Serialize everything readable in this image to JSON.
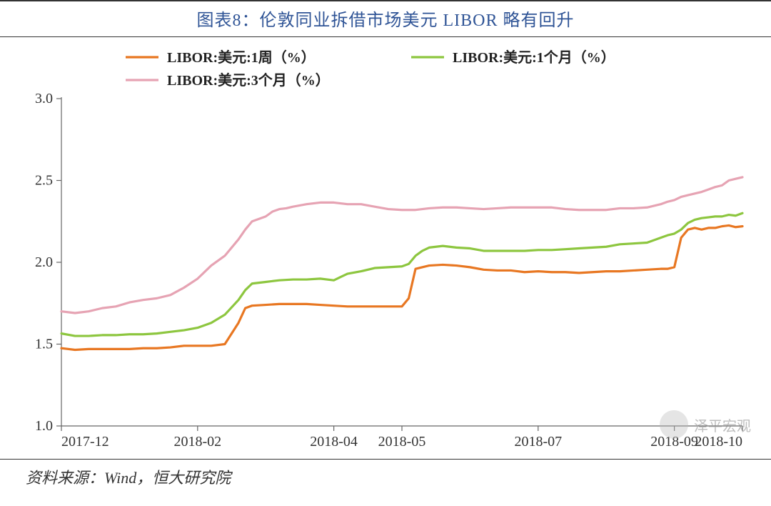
{
  "title": "图表8：伦敦同业拆借市场美元 LIBOR 略有回升",
  "footer": "资料来源：Wind，恒大研究院",
  "watermark": "泽平宏观",
  "chart": {
    "type": "line",
    "background_color": "#ffffff",
    "title_color": "#2f5496",
    "title_fontsize": 24,
    "axis_fontsize": 20,
    "legend_fontsize": 20,
    "line_width": 3.2,
    "xlim": [
      0,
      100
    ],
    "ylim": [
      1.0,
      3.0
    ],
    "ytick_step": 0.5,
    "yticks": [
      1.0,
      1.5,
      2.0,
      2.5,
      3.0
    ],
    "ytick_labels": [
      "1.0",
      "1.5",
      "2.0",
      "2.5",
      "3.0"
    ],
    "x_categories": [
      "2017-12",
      "2018-02",
      "2018-04",
      "2018-05",
      "2018-07",
      "2018-09",
      "2018-10"
    ],
    "x_category_pos": [
      0,
      20,
      40,
      50,
      70,
      90,
      100
    ],
    "tick_color": "#666666",
    "axis_color": "#666666",
    "legend": {
      "position": "top-inside",
      "legend_box_border": "none",
      "items": [
        {
          "label": "LIBOR:美元:1周（%）",
          "color": "#e87722"
        },
        {
          "label": "LIBOR:美元:1个月（%）",
          "color": "#8dc63f"
        },
        {
          "label": "LIBOR:美元:3个月（%）",
          "color": "#e6a3b3"
        }
      ]
    },
    "series": [
      {
        "name": "LIBOR:美元:1周（%）",
        "color": "#e87722",
        "dash": "none",
        "data": [
          [
            0,
            1.475
          ],
          [
            2,
            1.465
          ],
          [
            4,
            1.47
          ],
          [
            6,
            1.47
          ],
          [
            8,
            1.47
          ],
          [
            10,
            1.47
          ],
          [
            12,
            1.475
          ],
          [
            14,
            1.475
          ],
          [
            16,
            1.48
          ],
          [
            18,
            1.49
          ],
          [
            20,
            1.49
          ],
          [
            22,
            1.49
          ],
          [
            24,
            1.5
          ],
          [
            26,
            1.63
          ],
          [
            27,
            1.72
          ],
          [
            28,
            1.735
          ],
          [
            30,
            1.74
          ],
          [
            32,
            1.745
          ],
          [
            34,
            1.745
          ],
          [
            36,
            1.745
          ],
          [
            38,
            1.74
          ],
          [
            40,
            1.735
          ],
          [
            42,
            1.73
          ],
          [
            44,
            1.73
          ],
          [
            46,
            1.73
          ],
          [
            48,
            1.73
          ],
          [
            50,
            1.73
          ],
          [
            51,
            1.78
          ],
          [
            52,
            1.96
          ],
          [
            54,
            1.98
          ],
          [
            56,
            1.985
          ],
          [
            58,
            1.98
          ],
          [
            60,
            1.97
          ],
          [
            62,
            1.955
          ],
          [
            64,
            1.95
          ],
          [
            66,
            1.95
          ],
          [
            68,
            1.94
          ],
          [
            70,
            1.945
          ],
          [
            72,
            1.94
          ],
          [
            74,
            1.94
          ],
          [
            76,
            1.935
          ],
          [
            78,
            1.94
          ],
          [
            80,
            1.945
          ],
          [
            82,
            1.945
          ],
          [
            84,
            1.95
          ],
          [
            86,
            1.955
          ],
          [
            88,
            1.96
          ],
          [
            89,
            1.96
          ],
          [
            90,
            1.97
          ],
          [
            91,
            2.15
          ],
          [
            92,
            2.2
          ],
          [
            93,
            2.21
          ],
          [
            94,
            2.2
          ],
          [
            95,
            2.21
          ],
          [
            96,
            2.21
          ],
          [
            97,
            2.22
          ],
          [
            98,
            2.225
          ],
          [
            99,
            2.215
          ],
          [
            100,
            2.22
          ]
        ]
      },
      {
        "name": "LIBOR:美元:1个月（%）",
        "color": "#8dc63f",
        "dash": "none",
        "data": [
          [
            0,
            1.565
          ],
          [
            2,
            1.55
          ],
          [
            4,
            1.55
          ],
          [
            6,
            1.555
          ],
          [
            8,
            1.555
          ],
          [
            10,
            1.56
          ],
          [
            12,
            1.56
          ],
          [
            14,
            1.565
          ],
          [
            16,
            1.575
          ],
          [
            18,
            1.585
          ],
          [
            20,
            1.6
          ],
          [
            22,
            1.63
          ],
          [
            24,
            1.68
          ],
          [
            26,
            1.77
          ],
          [
            27,
            1.83
          ],
          [
            28,
            1.87
          ],
          [
            30,
            1.88
          ],
          [
            32,
            1.89
          ],
          [
            34,
            1.895
          ],
          [
            36,
            1.895
          ],
          [
            38,
            1.9
          ],
          [
            40,
            1.89
          ],
          [
            41,
            1.91
          ],
          [
            42,
            1.93
          ],
          [
            44,
            1.945
          ],
          [
            46,
            1.965
          ],
          [
            48,
            1.97
          ],
          [
            50,
            1.975
          ],
          [
            51,
            1.99
          ],
          [
            52,
            2.04
          ],
          [
            53,
            2.07
          ],
          [
            54,
            2.09
          ],
          [
            55,
            2.095
          ],
          [
            56,
            2.1
          ],
          [
            57,
            2.095
          ],
          [
            58,
            2.09
          ],
          [
            60,
            2.085
          ],
          [
            62,
            2.07
          ],
          [
            64,
            2.07
          ],
          [
            66,
            2.07
          ],
          [
            68,
            2.07
          ],
          [
            70,
            2.075
          ],
          [
            72,
            2.075
          ],
          [
            74,
            2.08
          ],
          [
            76,
            2.085
          ],
          [
            78,
            2.09
          ],
          [
            80,
            2.095
          ],
          [
            82,
            2.11
          ],
          [
            84,
            2.115
          ],
          [
            86,
            2.12
          ],
          [
            88,
            2.15
          ],
          [
            89,
            2.165
          ],
          [
            90,
            2.175
          ],
          [
            91,
            2.2
          ],
          [
            92,
            2.24
          ],
          [
            93,
            2.26
          ],
          [
            94,
            2.27
          ],
          [
            95,
            2.275
          ],
          [
            96,
            2.28
          ],
          [
            97,
            2.28
          ],
          [
            98,
            2.29
          ],
          [
            99,
            2.285
          ],
          [
            100,
            2.3
          ]
        ]
      },
      {
        "name": "LIBOR:美元:3个月（%）",
        "color": "#e6a3b3",
        "dash": "none",
        "data": [
          [
            0,
            1.7
          ],
          [
            2,
            1.69
          ],
          [
            4,
            1.7
          ],
          [
            6,
            1.72
          ],
          [
            8,
            1.73
          ],
          [
            10,
            1.755
          ],
          [
            12,
            1.77
          ],
          [
            14,
            1.78
          ],
          [
            16,
            1.8
          ],
          [
            18,
            1.845
          ],
          [
            20,
            1.9
          ],
          [
            22,
            1.98
          ],
          [
            24,
            2.04
          ],
          [
            26,
            2.14
          ],
          [
            27,
            2.2
          ],
          [
            28,
            2.25
          ],
          [
            30,
            2.28
          ],
          [
            31,
            2.31
          ],
          [
            32,
            2.325
          ],
          [
            33,
            2.33
          ],
          [
            34,
            2.34
          ],
          [
            36,
            2.355
          ],
          [
            38,
            2.365
          ],
          [
            40,
            2.365
          ],
          [
            41,
            2.36
          ],
          [
            42,
            2.355
          ],
          [
            44,
            2.355
          ],
          [
            46,
            2.34
          ],
          [
            48,
            2.325
          ],
          [
            50,
            2.32
          ],
          [
            52,
            2.32
          ],
          [
            54,
            2.33
          ],
          [
            56,
            2.335
          ],
          [
            58,
            2.335
          ],
          [
            60,
            2.33
          ],
          [
            62,
            2.325
          ],
          [
            64,
            2.33
          ],
          [
            66,
            2.335
          ],
          [
            68,
            2.335
          ],
          [
            70,
            2.335
          ],
          [
            72,
            2.335
          ],
          [
            74,
            2.325
          ],
          [
            76,
            2.32
          ],
          [
            78,
            2.32
          ],
          [
            80,
            2.32
          ],
          [
            82,
            2.33
          ],
          [
            84,
            2.33
          ],
          [
            86,
            2.335
          ],
          [
            88,
            2.355
          ],
          [
            89,
            2.37
          ],
          [
            90,
            2.38
          ],
          [
            91,
            2.4
          ],
          [
            92,
            2.41
          ],
          [
            93,
            2.42
          ],
          [
            94,
            2.43
          ],
          [
            95,
            2.445
          ],
          [
            96,
            2.46
          ],
          [
            97,
            2.47
          ],
          [
            98,
            2.5
          ],
          [
            99,
            2.51
          ],
          [
            100,
            2.52
          ]
        ]
      }
    ]
  }
}
